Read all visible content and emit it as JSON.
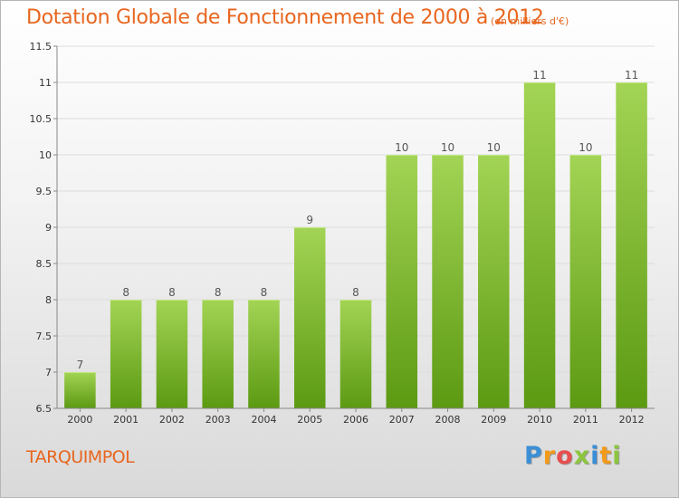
{
  "title": "Dotation Globale de Fonctionnement de 2000 à 2012",
  "subtitle": "(en milliers d'€)",
  "commune": "TARQUIMPOL",
  "logo": {
    "letters": [
      "P",
      "r",
      "o",
      "x",
      "i",
      "t",
      "i"
    ],
    "colors": [
      "#3b8fd6",
      "#f29a1a",
      "#e84e4e",
      "#8cc63f",
      "#3b8fd6",
      "#f29a1a",
      "#8cc63f"
    ]
  },
  "colors": {
    "title": "#e8661f",
    "bar_light": "#a3d455",
    "bar_dark": "#5c9a12",
    "grid": "#dddddd"
  },
  "chart_data": {
    "type": "bar",
    "categories": [
      "2000",
      "2001",
      "2002",
      "2003",
      "2004",
      "2005",
      "2006",
      "2007",
      "2008",
      "2009",
      "2010",
      "2011",
      "2012"
    ],
    "values": [
      7,
      8,
      8,
      8,
      8,
      9,
      8,
      10,
      10,
      10,
      11,
      10,
      11
    ],
    "data_labels": [
      "7",
      "8",
      "8",
      "8",
      "8",
      "9",
      "8",
      "10",
      "10",
      "10",
      "11",
      "10",
      "11"
    ],
    "ylim": [
      6.5,
      11.5
    ],
    "yticks": [
      "6.5",
      "7",
      "7.5",
      "8",
      "8.5",
      "9",
      "9.5",
      "10",
      "10.5",
      "11",
      "11.5"
    ],
    "grid": true
  }
}
